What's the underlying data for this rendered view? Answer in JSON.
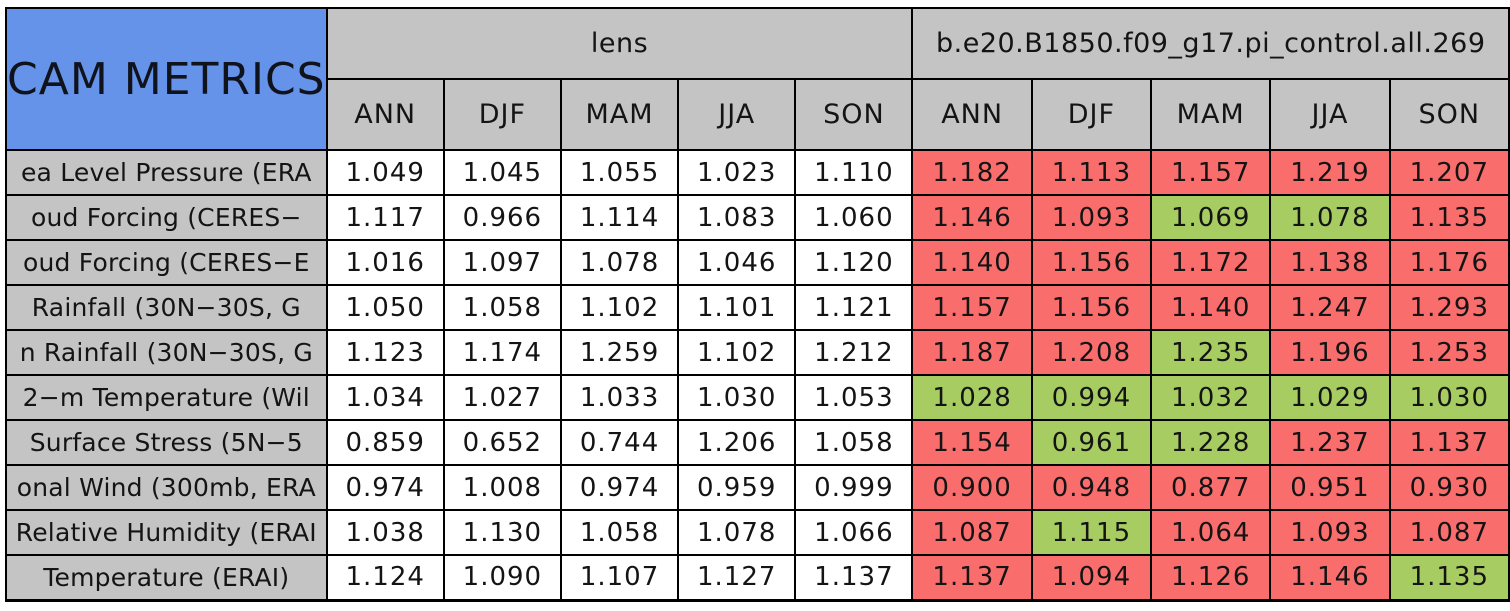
{
  "chart_data": {
    "type": "table",
    "title": "CAM METRICS",
    "column_groups": [
      {
        "label": "lens"
      },
      {
        "label": "b.e20.B1850.f09_g17.pi_control.all.269"
      }
    ],
    "season_columns": [
      "ANN",
      "DJF",
      "MAM",
      "JJA",
      "SON"
    ],
    "rows": [
      {
        "label": "ea Level Pressure (ERA",
        "lens": [
          "1.049",
          "1.045",
          "1.055",
          "1.023",
          "1.110"
        ],
        "control": [
          "1.182",
          "1.113",
          "1.157",
          "1.219",
          "1.207"
        ],
        "control_status": [
          "worse",
          "worse",
          "worse",
          "worse",
          "worse"
        ]
      },
      {
        "label": "oud Forcing (CERES−",
        "lens": [
          "1.117",
          "0.966",
          "1.114",
          "1.083",
          "1.060"
        ],
        "control": [
          "1.146",
          "1.093",
          "1.069",
          "1.078",
          "1.135"
        ],
        "control_status": [
          "worse",
          "worse",
          "better",
          "better",
          "worse"
        ]
      },
      {
        "label": "oud Forcing (CERES−E",
        "lens": [
          "1.016",
          "1.097",
          "1.078",
          "1.046",
          "1.120"
        ],
        "control": [
          "1.140",
          "1.156",
          "1.172",
          "1.138",
          "1.176"
        ],
        "control_status": [
          "worse",
          "worse",
          "worse",
          "worse",
          "worse"
        ]
      },
      {
        "label": "Rainfall (30N−30S, G",
        "lens": [
          "1.050",
          "1.058",
          "1.102",
          "1.101",
          "1.121"
        ],
        "control": [
          "1.157",
          "1.156",
          "1.140",
          "1.247",
          "1.293"
        ],
        "control_status": [
          "worse",
          "worse",
          "worse",
          "worse",
          "worse"
        ]
      },
      {
        "label": "n Rainfall (30N−30S, G",
        "lens": [
          "1.123",
          "1.174",
          "1.259",
          "1.102",
          "1.212"
        ],
        "control": [
          "1.187",
          "1.208",
          "1.235",
          "1.196",
          "1.253"
        ],
        "control_status": [
          "worse",
          "worse",
          "better",
          "worse",
          "worse"
        ]
      },
      {
        "label": "2−m Temperature (Wil",
        "lens": [
          "1.034",
          "1.027",
          "1.033",
          "1.030",
          "1.053"
        ],
        "control": [
          "1.028",
          "0.994",
          "1.032",
          "1.029",
          "1.030"
        ],
        "control_status": [
          "better",
          "better",
          "better",
          "better",
          "better"
        ]
      },
      {
        "label": "Surface Stress (5N−5",
        "lens": [
          "0.859",
          "0.652",
          "0.744",
          "1.206",
          "1.058"
        ],
        "control": [
          "1.154",
          "0.961",
          "1.228",
          "1.237",
          "1.137"
        ],
        "control_status": [
          "worse",
          "better",
          "better",
          "worse",
          "worse"
        ]
      },
      {
        "label": "onal Wind (300mb, ERA",
        "lens": [
          "0.974",
          "1.008",
          "0.974",
          "0.959",
          "0.999"
        ],
        "control": [
          "0.900",
          "0.948",
          "0.877",
          "0.951",
          "0.930"
        ],
        "control_status": [
          "worse",
          "worse",
          "worse",
          "worse",
          "worse"
        ]
      },
      {
        "label": "Relative Humidity (ERAI",
        "lens": [
          "1.038",
          "1.130",
          "1.058",
          "1.078",
          "1.066"
        ],
        "control": [
          "1.087",
          "1.115",
          "1.064",
          "1.093",
          "1.087"
        ],
        "control_status": [
          "worse",
          "better",
          "worse",
          "worse",
          "worse"
        ]
      },
      {
        "label": "Temperature (ERAI)",
        "lens": [
          "1.124",
          "1.090",
          "1.107",
          "1.127",
          "1.137"
        ],
        "control": [
          "1.137",
          "1.094",
          "1.126",
          "1.146",
          "1.135"
        ],
        "control_status": [
          "worse",
          "worse",
          "worse",
          "worse",
          "better"
        ]
      }
    ],
    "layout": {
      "grid": "on",
      "lens_cell_background": "#ffffff",
      "header_background": "#c4c4c4",
      "corner_background": "#6593e9"
    }
  },
  "colors": {
    "worse": "#fa6d6d",
    "better": "#a6cc62",
    "header_bg": "#c4c4c4",
    "corner_bg": "#6593e9",
    "border": "#000000"
  }
}
